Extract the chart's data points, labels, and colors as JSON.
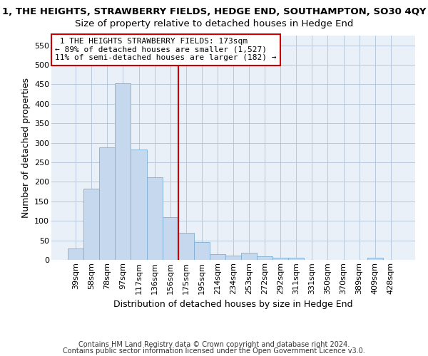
{
  "title": "1, THE HEIGHTS, STRAWBERRY FIELDS, HEDGE END, SOUTHAMPTON, SO30 4QY",
  "subtitle": "Size of property relative to detached houses in Hedge End",
  "xlabel": "Distribution of detached houses by size in Hedge End",
  "ylabel": "Number of detached properties",
  "bar_color": "#c5d8ed",
  "bar_edge_color": "#7bafd4",
  "categories": [
    "39sqm",
    "58sqm",
    "78sqm",
    "97sqm",
    "117sqm",
    "136sqm",
    "156sqm",
    "175sqm",
    "195sqm",
    "214sqm",
    "234sqm",
    "253sqm",
    "272sqm",
    "292sqm",
    "311sqm",
    "331sqm",
    "350sqm",
    "370sqm",
    "389sqm",
    "409sqm",
    "428sqm"
  ],
  "values": [
    30,
    183,
    288,
    452,
    283,
    211,
    110,
    70,
    46,
    15,
    11,
    19,
    10,
    6,
    6,
    0,
    0,
    0,
    0,
    6,
    0
  ],
  "ylim": [
    0,
    575
  ],
  "yticks": [
    0,
    50,
    100,
    150,
    200,
    250,
    300,
    350,
    400,
    450,
    500,
    550
  ],
  "vline_x": 6.5,
  "vline_color": "#cc0000",
  "annotation_text": " 1 THE HEIGHTS STRAWBERRY FIELDS: 173sqm\n← 89% of detached houses are smaller (1,527)\n11% of semi-detached houses are larger (182) →",
  "annotation_box_color": "#ffffff",
  "annotation_border_color": "#cc0000",
  "footer1": "Contains HM Land Registry data © Crown copyright and database right 2024.",
  "footer2": "Contains public sector information licensed under the Open Government Licence v3.0.",
  "plot_bg_color": "#eaf0f8",
  "title_fontsize": 9.5,
  "subtitle_fontsize": 9.5,
  "axis_label_fontsize": 9,
  "tick_fontsize": 8,
  "footer_fontsize": 7
}
